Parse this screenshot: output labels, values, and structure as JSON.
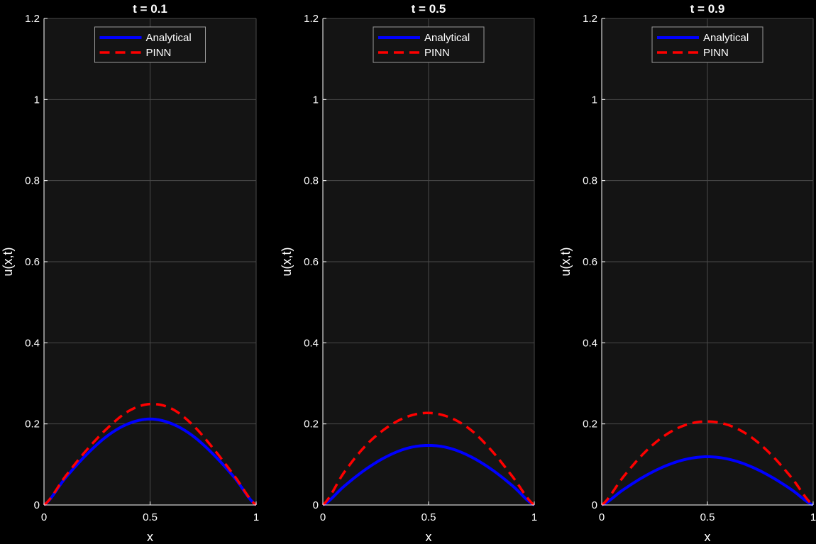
{
  "chart_data": [
    {
      "type": "line",
      "title": "t = 0.1",
      "xlabel": "x",
      "ylabel": "u(x,t)",
      "xlim": [
        0,
        1
      ],
      "ylim": [
        0,
        1.2
      ],
      "xticks": [
        "0",
        "0.5",
        "1"
      ],
      "yticks": [
        "0",
        "0.2",
        "0.4",
        "0.6",
        "0.8",
        "1",
        "1.2"
      ],
      "grid": true,
      "legend_position": "top-center",
      "series": [
        {
          "name": "Analytical",
          "style": "solid",
          "color": "#0000ff",
          "x": [
            0,
            0.1,
            0.2,
            0.3,
            0.4,
            0.5,
            0.6,
            0.7,
            0.8,
            0.9,
            1.0
          ],
          "y": [
            0,
            0.066,
            0.124,
            0.171,
            0.201,
            0.212,
            0.201,
            0.171,
            0.124,
            0.066,
            0
          ]
        },
        {
          "name": "PINN",
          "style": "dashed",
          "color": "#ff0000",
          "x": [
            0,
            0.1,
            0.2,
            0.3,
            0.4,
            0.5,
            0.6,
            0.7,
            0.8,
            0.9,
            1.0
          ],
          "y": [
            0,
            0.07,
            0.135,
            0.19,
            0.232,
            0.249,
            0.238,
            0.198,
            0.138,
            0.07,
            0
          ]
        }
      ]
    },
    {
      "type": "line",
      "title": "t = 0.5",
      "xlabel": "x",
      "ylabel": "u(x,t)",
      "xlim": [
        0,
        1
      ],
      "ylim": [
        0,
        1.2
      ],
      "xticks": [
        "0",
        "0.5",
        "1"
      ],
      "yticks": [
        "0",
        "0.2",
        "0.4",
        "0.6",
        "0.8",
        "1",
        "1.2"
      ],
      "grid": true,
      "legend_position": "top-center",
      "series": [
        {
          "name": "Analytical",
          "style": "solid",
          "color": "#0000ff",
          "x": [
            0,
            0.1,
            0.2,
            0.3,
            0.4,
            0.5,
            0.6,
            0.7,
            0.8,
            0.9,
            1.0
          ],
          "y": [
            0,
            0.046,
            0.087,
            0.119,
            0.14,
            0.147,
            0.14,
            0.119,
            0.087,
            0.046,
            0
          ]
        },
        {
          "name": "PINN",
          "style": "dashed",
          "color": "#ff0000",
          "x": [
            0,
            0.1,
            0.2,
            0.3,
            0.4,
            0.5,
            0.6,
            0.7,
            0.8,
            0.9,
            1.0
          ],
          "y": [
            0,
            0.08,
            0.145,
            0.19,
            0.218,
            0.227,
            0.216,
            0.185,
            0.133,
            0.068,
            0
          ]
        }
      ]
    },
    {
      "type": "line",
      "title": "t = 0.9",
      "xlabel": "x",
      "ylabel": "u(x,t)",
      "xlim": [
        0,
        1
      ],
      "ylim": [
        0,
        1.2
      ],
      "xticks": [
        "0",
        "0.5",
        "1"
      ],
      "yticks": [
        "0",
        "0.2",
        "0.4",
        "0.6",
        "0.8",
        "1",
        "1.2"
      ],
      "grid": true,
      "legend_position": "top-center",
      "series": [
        {
          "name": "Analytical",
          "style": "solid",
          "color": "#0000ff",
          "x": [
            0,
            0.1,
            0.2,
            0.3,
            0.4,
            0.5,
            0.6,
            0.7,
            0.8,
            0.9,
            1.0
          ],
          "y": [
            0,
            0.037,
            0.07,
            0.096,
            0.113,
            0.119,
            0.113,
            0.096,
            0.07,
            0.037,
            0
          ]
        },
        {
          "name": "PINN",
          "style": "dashed",
          "color": "#ff0000",
          "x": [
            0,
            0.1,
            0.2,
            0.3,
            0.4,
            0.5,
            0.6,
            0.7,
            0.8,
            0.9,
            1.0
          ],
          "y": [
            0,
            0.068,
            0.128,
            0.172,
            0.198,
            0.206,
            0.197,
            0.17,
            0.125,
            0.066,
            0
          ]
        }
      ]
    }
  ],
  "colors": {
    "figure_background": "#000000",
    "axes_background": "#141414",
    "grid": "#4a4a4a",
    "axis_line": "#ffffff",
    "legend_border": "#9a9a9a"
  }
}
